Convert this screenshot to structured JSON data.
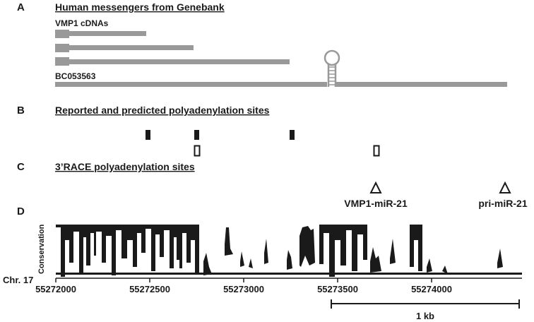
{
  "panels": {
    "a": {
      "letter": "A",
      "heading": "Human messengers from Genebank",
      "cdna_label": "VMP1 cDNAs",
      "bc_label": "BC053563"
    },
    "b": {
      "letter": "B",
      "heading": "Reported and predicted polyadenylation sites"
    },
    "c": {
      "letter": "C",
      "heading": "3’RACE polyadenylation sites",
      "site_1_label": "VMP1-miR-21",
      "site_2_label": "pri-miR-21"
    },
    "d": {
      "letter": "D",
      "ylabel": "Conservation",
      "chrom_label": "Chr. 17",
      "ticks": [
        "55272000",
        "55272500",
        "55273000",
        "55273500",
        "55274000"
      ],
      "scale_label": "1 kb"
    }
  },
  "colors": {
    "transcript": "#999999",
    "ink": "#1a1a1a",
    "conservation": "#1a1a1a"
  },
  "icons": {
    "hairpin": "stem-loop-icon",
    "race_site": "open-triangle-icon"
  }
}
